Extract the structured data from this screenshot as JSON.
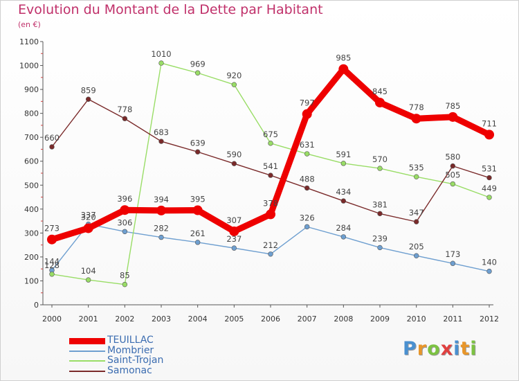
{
  "title": "Evolution du Montant de la Dette par Habitant",
  "subtitle": "(en €)",
  "brand": {
    "text": "Proxiti",
    "letters": [
      "P",
      "r",
      "o",
      "x",
      "i",
      "t",
      "i"
    ],
    "colors": [
      "#4a90d0",
      "#e8962a",
      "#7cc242",
      "#e04040",
      "#4a90d0",
      "#e8962a",
      "#7cc242"
    ]
  },
  "chart_data": {
    "type": "line",
    "title": "Evolution du Montant de la Dette par Habitant",
    "xlabel": "",
    "ylabel": "(en €)",
    "x": [
      "2000",
      "2001",
      "2002",
      "2003",
      "2004",
      "2005",
      "2006",
      "2007",
      "2008",
      "2009",
      "2010",
      "2011",
      "2012"
    ],
    "ylim": [
      0,
      1100
    ],
    "yticks": [
      0,
      100,
      200,
      300,
      400,
      500,
      600,
      700,
      800,
      900,
      1000,
      1100
    ],
    "grid": false,
    "legend": "bottom-left",
    "series": [
      {
        "name": "TEUILLAC",
        "color": "#ee0000",
        "bold": true,
        "values": [
          273,
          320,
          396,
          394,
          395,
          307,
          378,
          797,
          985,
          845,
          778,
          785,
          711
        ],
        "labels": [
          "273",
          "320",
          "396",
          "394",
          "395",
          "307",
          "378",
          "797",
          "985",
          "845",
          "778",
          "785",
          "711"
        ]
      },
      {
        "name": "Mombrier",
        "color": "#6e9fd0",
        "bold": false,
        "values": [
          144,
          337,
          306,
          282,
          261,
          237,
          212,
          326,
          284,
          239,
          205,
          173,
          140
        ],
        "labels": [
          "144",
          "337",
          "306",
          "282",
          "261",
          "237",
          "212",
          "326",
          "284",
          "239",
          "205",
          "173",
          "140"
        ]
      },
      {
        "name": "Saint-Trojan",
        "color": "#99dd66",
        "bold": false,
        "values": [
          128,
          104,
          85,
          1010,
          969,
          920,
          675,
          631,
          591,
          570,
          535,
          505,
          449
        ],
        "labels": [
          "128",
          "104",
          "85",
          "1010",
          "969",
          "920",
          "675",
          "631",
          "591",
          "570",
          "535",
          "505",
          "449"
        ]
      },
      {
        "name": "Samonac",
        "color": "#7a2a2a",
        "bold": false,
        "values": [
          660,
          859,
          778,
          683,
          639,
          590,
          541,
          488,
          434,
          381,
          347,
          580,
          531
        ],
        "labels": [
          "660",
          "859",
          "778",
          "683",
          "639",
          "590",
          "541",
          "488",
          "434",
          "381",
          "347",
          "580",
          "531"
        ]
      }
    ]
  }
}
